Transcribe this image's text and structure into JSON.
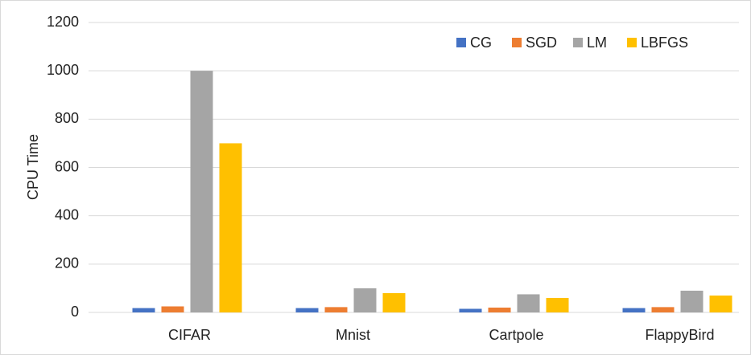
{
  "chart_data": {
    "type": "bar",
    "y_label": "CPU Time",
    "categories": [
      "CIFAR",
      "Mnist",
      "Cartpole",
      "FlappyBird"
    ],
    "series": [
      {
        "name": "CG",
        "color": "#4472c4",
        "values": [
          18,
          18,
          15,
          18
        ]
      },
      {
        "name": "SGD",
        "color": "#ed7d31",
        "values": [
          25,
          22,
          20,
          22
        ]
      },
      {
        "name": "LM",
        "color": "#a5a5a5",
        "values": [
          1000,
          100,
          75,
          90
        ]
      },
      {
        "name": "LBFGS",
        "color": "#ffc000",
        "values": [
          700,
          80,
          60,
          70
        ]
      }
    ],
    "ylim": [
      0,
      1200
    ],
    "yticks": [
      0,
      200,
      400,
      600,
      800,
      1000,
      1200
    ],
    "grid": true,
    "legend": "top-right"
  }
}
